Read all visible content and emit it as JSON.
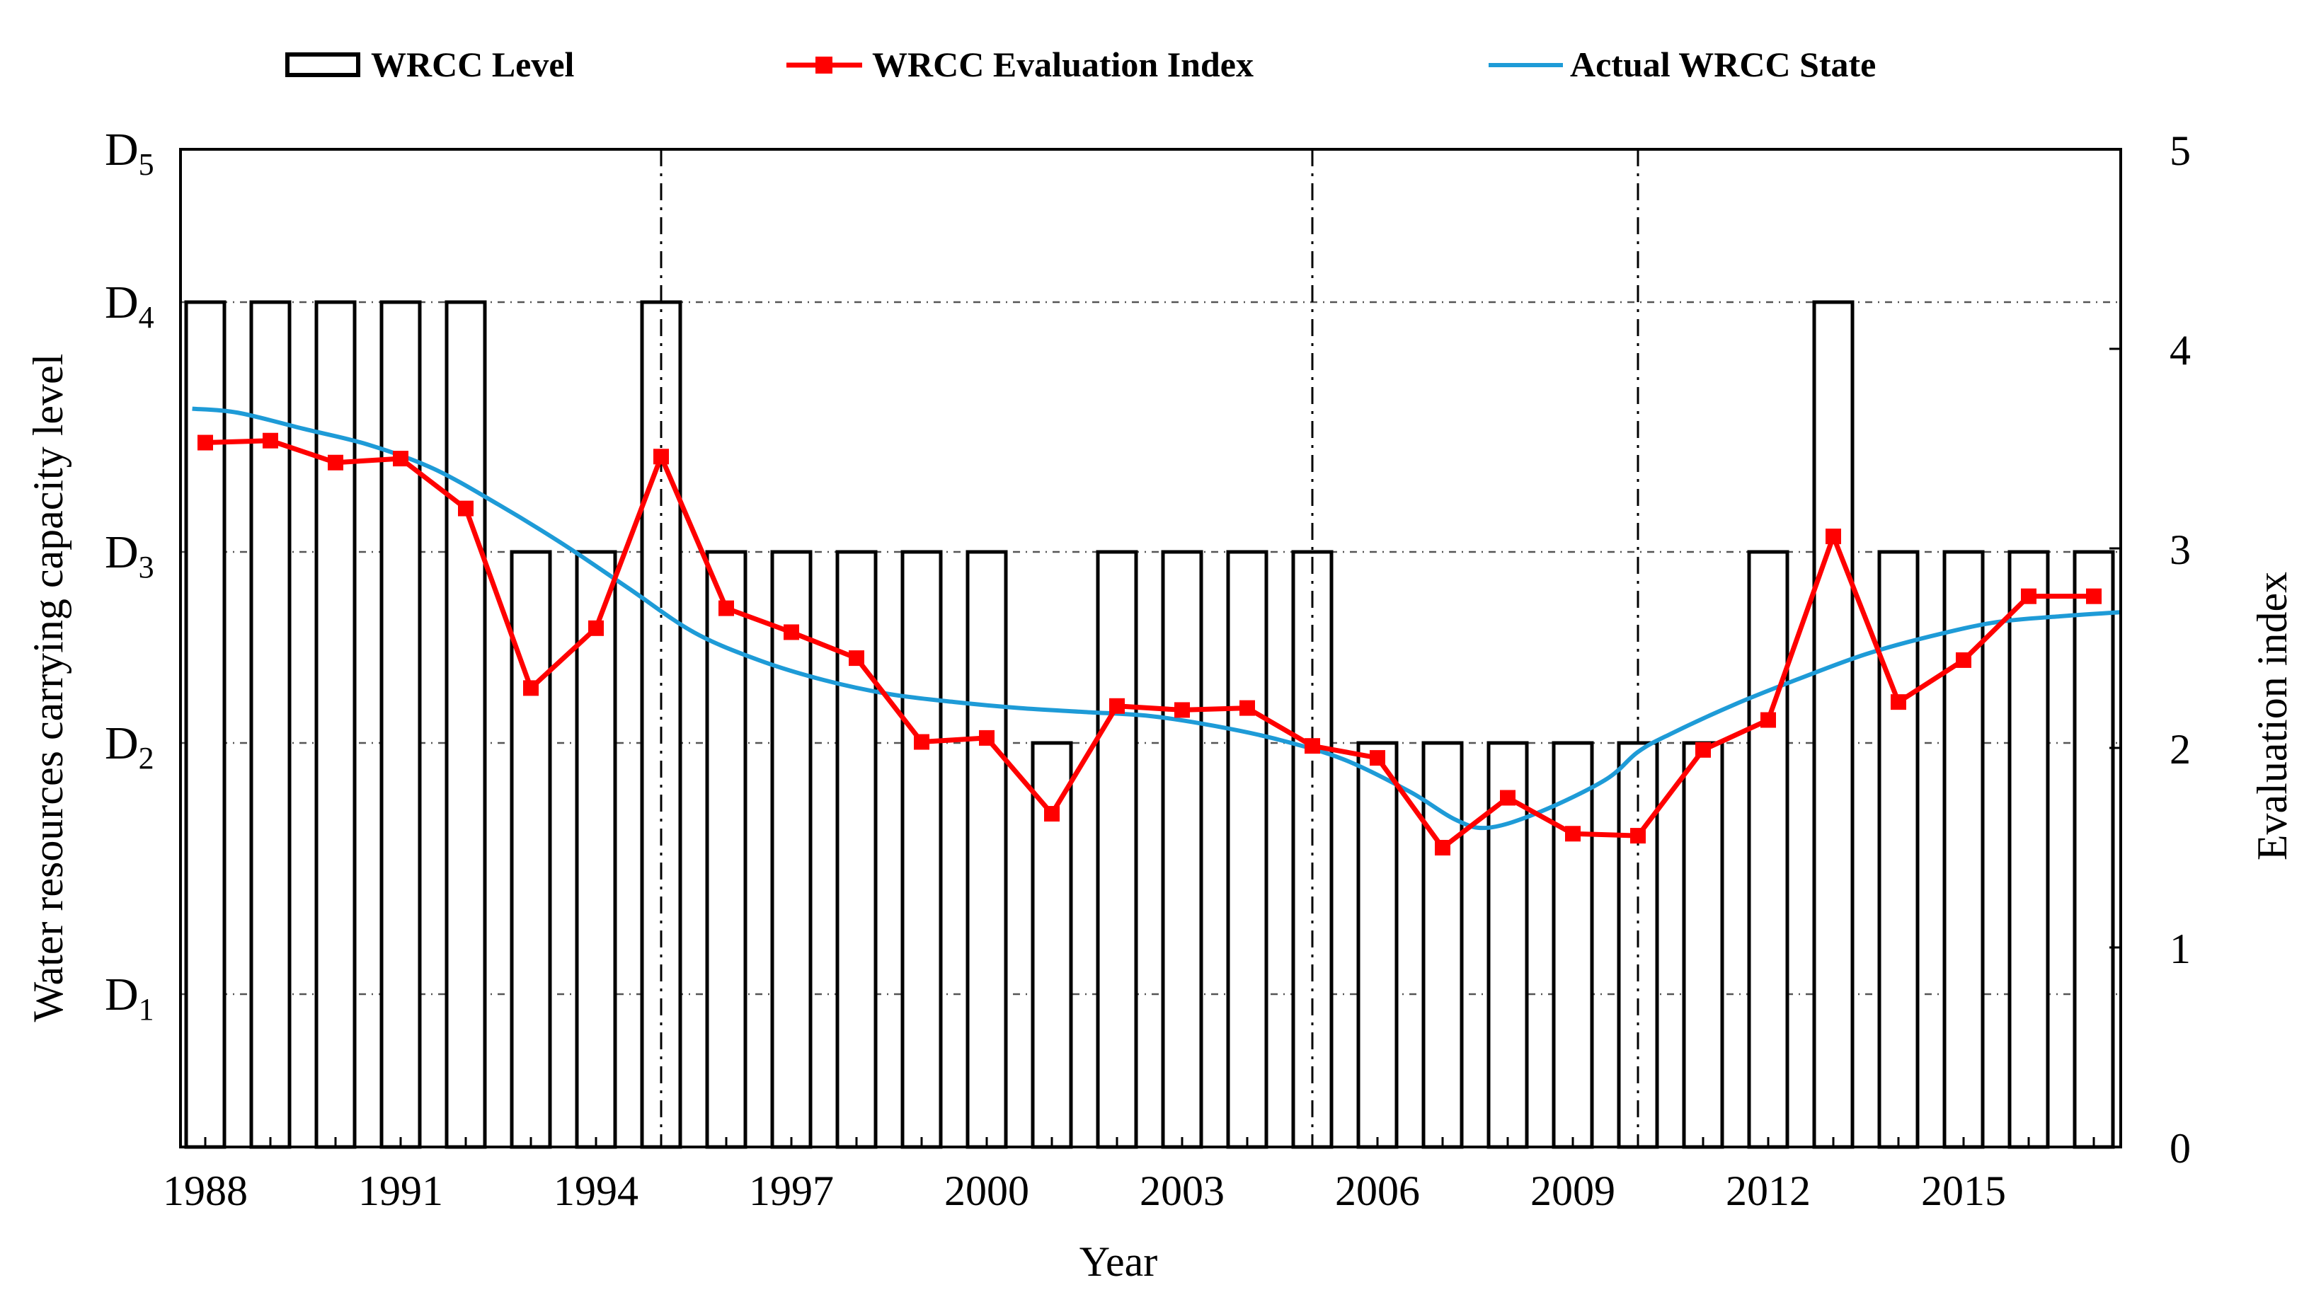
{
  "chart_data": {
    "type": "bar",
    "xlabel": "Year",
    "ylabel_left": "Water resources carrying capacity level",
    "ylabel_right": "Evaluation index",
    "x_tick_labels": [
      "1988",
      "1991",
      "1994",
      "1997",
      "2000",
      "2003",
      "2006",
      "2009",
      "2012",
      "2015"
    ],
    "years": [
      1988,
      1989,
      1990,
      1991,
      1992,
      1993,
      1994,
      1995,
      1996,
      1997,
      1998,
      1999,
      2000,
      2001,
      2002,
      2003,
      2004,
      2005,
      2006,
      2007,
      2008,
      2009,
      2010,
      2011,
      2012,
      2013,
      2014,
      2015,
      2016,
      2017
    ],
    "left_axis": {
      "levels": [
        {
          "main": "D",
          "sub": "1",
          "value": 1
        },
        {
          "main": "D",
          "sub": "2",
          "value": 2
        },
        {
          "main": "D",
          "sub": "3",
          "value": 3
        },
        {
          "main": "D",
          "sub": "4",
          "value": 4
        },
        {
          "main": "D",
          "sub": "5",
          "value": 5
        }
      ]
    },
    "right_axis": {
      "ylim": [
        0,
        5
      ],
      "ticks": [
        "0",
        "1",
        "2",
        "3",
        "4",
        "5"
      ]
    },
    "series": [
      {
        "name": "WRCC Level",
        "kind": "bar",
        "values": [
          4,
          4,
          4,
          4,
          4,
          3,
          3,
          4,
          3,
          3,
          3,
          3,
          3,
          2,
          3,
          3,
          3,
          3,
          2,
          2,
          2,
          2,
          2,
          2,
          3,
          4,
          3,
          3,
          3,
          3
        ]
      },
      {
        "name": "WRCC Evaluation Index",
        "kind": "line-marker",
        "color": "#ff0000",
        "values": [
          3.53,
          3.54,
          3.43,
          3.45,
          3.2,
          2.3,
          2.6,
          3.46,
          2.7,
          2.58,
          2.45,
          2.03,
          2.05,
          1.67,
          2.21,
          2.19,
          2.2,
          2.01,
          1.95,
          1.5,
          1.75,
          1.57,
          1.56,
          1.99,
          2.14,
          3.06,
          2.23,
          2.44,
          2.76,
          2.76
        ]
      },
      {
        "name": "Actual WRCC State",
        "kind": "line",
        "color": "#1e9bd7",
        "points": [
          [
            1987.8,
            3.7
          ],
          [
            1988.5,
            3.68
          ],
          [
            1989.5,
            3.6
          ],
          [
            1990.5,
            3.52
          ],
          [
            1991.5,
            3.4
          ],
          [
            1992.5,
            3.22
          ],
          [
            1993.5,
            3.02
          ],
          [
            1994.5,
            2.8
          ],
          [
            1995.5,
            2.58
          ],
          [
            1996.5,
            2.44
          ],
          [
            1997.5,
            2.34
          ],
          [
            1998.5,
            2.27
          ],
          [
            1999.5,
            2.23
          ],
          [
            2000.5,
            2.2
          ],
          [
            2001.5,
            2.18
          ],
          [
            2002.5,
            2.16
          ],
          [
            2003.5,
            2.11
          ],
          [
            2004.5,
            2.04
          ],
          [
            2005.5,
            1.94
          ],
          [
            2006.5,
            1.78
          ],
          [
            2007.2,
            1.64
          ],
          [
            2007.7,
            1.6
          ],
          [
            2008.5,
            1.68
          ],
          [
            2009.5,
            1.84
          ],
          [
            2010.0,
            1.98
          ],
          [
            2010.5,
            2.07
          ],
          [
            2011.5,
            2.22
          ],
          [
            2012.5,
            2.35
          ],
          [
            2013.5,
            2.47
          ],
          [
            2014.5,
            2.56
          ],
          [
            2015.5,
            2.63
          ],
          [
            2016.5,
            2.66
          ],
          [
            2017.4,
            2.68
          ]
        ]
      }
    ],
    "vertical_dashdot_years": [
      1995,
      2005,
      2010
    ],
    "horizontal_dashdot_levels": [
      1,
      2,
      3,
      4
    ],
    "legend_position": "top"
  }
}
